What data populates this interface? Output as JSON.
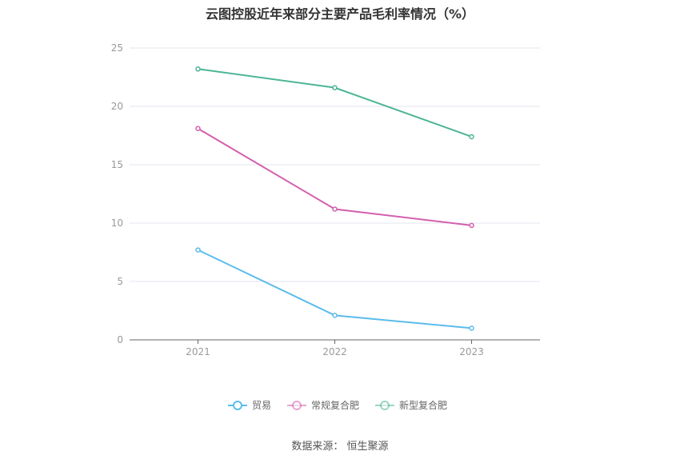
{
  "chart_data": {
    "type": "line",
    "title": "云图控股近年来部分主要产品毛利率情况（%）",
    "categories": [
      "2021",
      "2022",
      "2023"
    ],
    "ylim": [
      0,
      25
    ],
    "yticks": [
      0,
      5,
      10,
      15,
      20,
      25
    ],
    "grid": true,
    "legend_position": "bottom",
    "series": [
      {
        "name": "贸易",
        "values": [
          7.7,
          2.1,
          1.0
        ],
        "color": "#5bbcec"
      },
      {
        "name": "常规复合肥",
        "values": [
          18.1,
          11.2,
          9.8
        ],
        "color": "#d45fae"
      },
      {
        "name": "新型复合肥",
        "values": [
          23.2,
          21.6,
          17.4
        ],
        "color": "#4cb596"
      }
    ]
  },
  "source": "数据来源：  恒生聚源"
}
